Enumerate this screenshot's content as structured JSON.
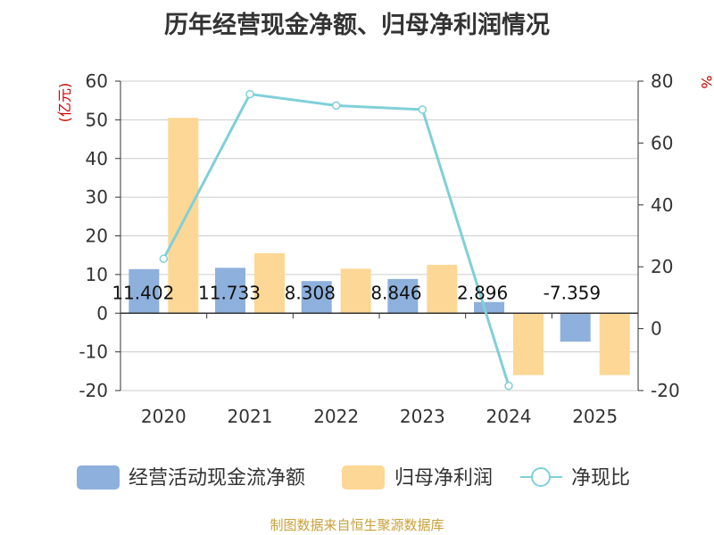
{
  "chart_data": {
    "type": "bar",
    "title": "历年经营现金净额、归母净利润情况",
    "categories": [
      "2020",
      "2021",
      "2022",
      "2023",
      "2024",
      "2025"
    ],
    "series": [
      {
        "name": "经营活动现金流净额",
        "type": "bar",
        "axis": "left",
        "color": "#8eb0dc",
        "values": [
          11.402,
          11.733,
          8.308,
          8.846,
          2.896,
          -7.359
        ],
        "labels": [
          "11.402",
          "11.733",
          "8.308",
          "8.846",
          "2.896",
          "-7.359"
        ]
      },
      {
        "name": "归母净利润",
        "type": "bar",
        "axis": "left",
        "color": "#fdd795",
        "values": [
          50.5,
          15.5,
          11.5,
          12.5,
          -16.0,
          -16.0
        ]
      },
      {
        "name": "净现比",
        "type": "line",
        "axis": "right",
        "color": "#7fd0d8",
        "values": [
          22.6,
          75.8,
          72.1,
          70.8,
          -18.5,
          null
        ]
      }
    ],
    "left_axis": {
      "label": "(亿元)",
      "min": -20,
      "max": 60,
      "ticks": [
        60,
        50,
        40,
        30,
        20,
        10,
        0,
        -10,
        -20
      ]
    },
    "right_axis": {
      "label": "%",
      "min": -20,
      "max": 80,
      "ticks": [
        80,
        60,
        40,
        20,
        0,
        -20
      ]
    },
    "grid": true,
    "legend_position": "bottom",
    "source": "制图数据来自恒生聚源数据库",
    "colors": {
      "axis_label": "#cc0000",
      "source": "#c9a13b",
      "grid": "#cccccc",
      "text": "#333333"
    }
  }
}
